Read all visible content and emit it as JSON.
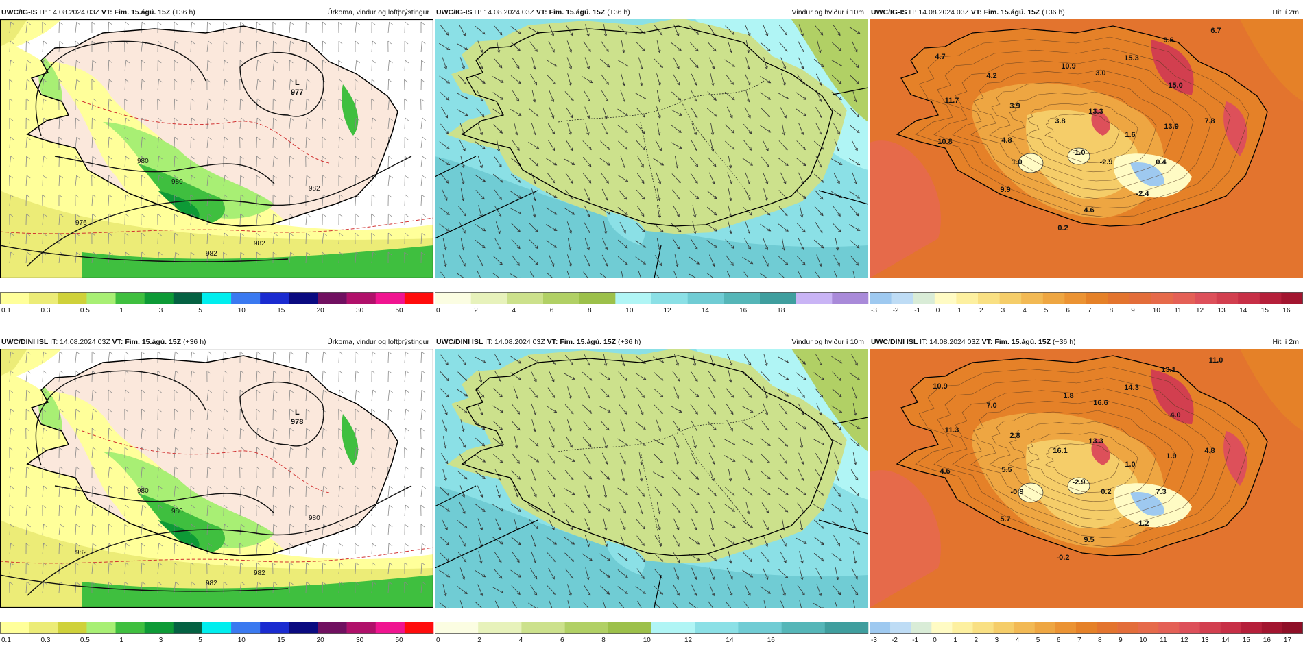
{
  "rows": [
    {
      "model": "UWC/IG-IS",
      "init": "IT: 14.08.2024 03Z",
      "valid_label": "VT:",
      "valid": "Fim. 15.ágú. 15Z",
      "lead": "(+36 h)",
      "lowPressure": "977",
      "isobars": [
        "976",
        "980",
        "982",
        "982",
        "982",
        "980"
      ],
      "temps": [
        "4.7",
        "4.2",
        "10.9",
        "3.0",
        "15.3",
        "9.6",
        "6.7",
        "11.7",
        "3.9",
        "13.3",
        "15.0",
        "3.8",
        "7.8",
        "13.9",
        "10.8",
        "4.8",
        "1.6",
        "1.0",
        "-1.0",
        "-2.9",
        "0.4",
        "9.9",
        "-2.4",
        "4.6",
        "0.2"
      ]
    },
    {
      "model": "UWC/DINI ISL",
      "init": "IT: 14.08.2024 03Z",
      "valid_label": "VT:",
      "valid": "Fim. 15.ágú. 15Z",
      "lead": "(+36 h)",
      "lowPressure": "978",
      "isobars": [
        "982",
        "980",
        "982",
        "980",
        "982",
        "980"
      ],
      "temps": [
        "10.9",
        "7.0",
        "1.8",
        "16.6",
        "14.3",
        "13.1",
        "11.0",
        "11.3",
        "2.8",
        "13.3",
        "4.0",
        "16.1",
        "4.8",
        "1.9",
        "4.6",
        "5.5",
        "1.0",
        "-0.9",
        "-2.9",
        "0.2",
        "7.3",
        "5.7",
        "-1.2",
        "9.5",
        "-0.2"
      ]
    }
  ],
  "panels": {
    "precip": {
      "title": "Úrkoma, vindur og loftþrýstingur",
      "legend": [
        "0.1",
        "0.3",
        "0.5",
        "1",
        "3",
        "5",
        "10",
        "15",
        "20",
        "30",
        "50"
      ],
      "colors": [
        "#ffff9a",
        "#ecec77",
        "#cfd13a",
        "#a8ef74",
        "#3fbf3f",
        "#0d9a36",
        "#046142",
        "#00eeee",
        "#3a79f0",
        "#1a2bd0",
        "#0a0a80",
        "#701060",
        "#b0106a",
        "#f01490",
        "#ff0c0c"
      ]
    },
    "wind": {
      "title": "Vindur og hviður í 10m",
      "legend_top": [
        "0",
        "2",
        "4",
        "6",
        "8",
        "10",
        "12",
        "14",
        "16",
        "18"
      ],
      "legend_bottom": [
        "0",
        "2",
        "4",
        "6",
        "8",
        "10",
        "12",
        "14",
        "16"
      ],
      "colors": [
        "#fbfde2",
        "#e7f2bb",
        "#cce18c",
        "#b1d065",
        "#9cc04a",
        "#b0f5f5",
        "#8be0e6",
        "#70ccd4",
        "#55b6b8",
        "#3f9e9e",
        "#c9b4f5",
        "#a98ad9"
      ]
    },
    "temp": {
      "title": "Hiti í 2m",
      "legend_top": [
        "-3",
        "-2",
        "-1",
        "0",
        "1",
        "2",
        "3",
        "4",
        "5",
        "6",
        "7",
        "8",
        "9",
        "10",
        "11",
        "12",
        "13",
        "14",
        "15",
        "16"
      ],
      "legend_bottom": [
        "-3",
        "-2",
        "-1",
        "0",
        "1",
        "2",
        "3",
        "4",
        "5",
        "6",
        "7",
        "8",
        "9",
        "10",
        "11",
        "12",
        "13",
        "14",
        "15",
        "16",
        "17"
      ],
      "colors": [
        "#9ec9f0",
        "#bedcf5",
        "#d9ecd7",
        "#fffbc4",
        "#fdf0a0",
        "#f9e083",
        "#f5cd69",
        "#f2b954",
        "#eea642",
        "#eb9333",
        "#e58128",
        "#e3742e",
        "#e36d3a",
        "#e66a4a",
        "#e46056",
        "#dd505a",
        "#d23f4f",
        "#c72f46",
        "#b51f3a",
        "#a2152f",
        "#8e0f27"
      ]
    }
  }
}
